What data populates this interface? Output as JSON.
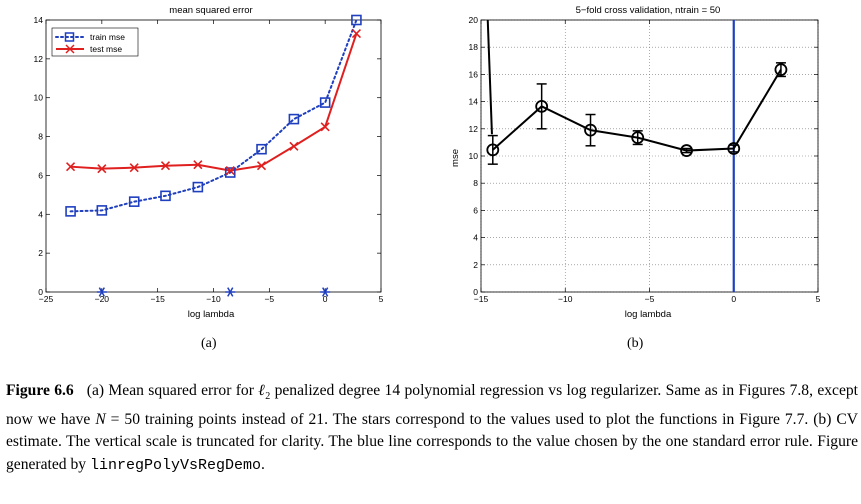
{
  "chart_data": [
    {
      "type": "line",
      "title": "mean squared error",
      "xlabel": "log lambda",
      "ylabel": "",
      "xlim": [
        -25,
        5
      ],
      "ylim": [
        0,
        14
      ],
      "xticks": [
        -25,
        -20,
        -15,
        -10,
        -5,
        0,
        5
      ],
      "yticks": [
        0,
        2,
        4,
        6,
        8,
        10,
        12,
        14
      ],
      "grid": false,
      "legend_position": "top-left",
      "x": [
        -22.8,
        -20.0,
        -17.1,
        -14.3,
        -11.4,
        -8.5,
        -5.7,
        -2.8,
        0.0,
        2.8
      ],
      "series": [
        {
          "name": "train mse",
          "color": "#1f3fbf",
          "style": "dotted",
          "marker": "square",
          "values": [
            4.15,
            4.2,
            4.65,
            4.95,
            5.4,
            6.15,
            7.35,
            8.9,
            9.75,
            14.0
          ]
        },
        {
          "name": "test mse",
          "color": "#e01f1f",
          "style": "solid",
          "marker": "x",
          "values": [
            6.45,
            6.35,
            6.4,
            6.5,
            6.55,
            6.25,
            6.5,
            7.5,
            8.5,
            13.3
          ]
        }
      ],
      "stars": {
        "x": [
          -20.0,
          -8.5,
          0.0
        ],
        "y": 0,
        "color": "#1f3fbf"
      },
      "sublabel": "(a)"
    },
    {
      "type": "line",
      "title": "5−fold cross validation, ntrain = 50",
      "xlabel": "log lambda",
      "ylabel": "mse",
      "xlim": [
        -15,
        5
      ],
      "ylim": [
        0,
        20
      ],
      "xticks": [
        -15,
        -10,
        -5,
        0,
        5
      ],
      "yticks": [
        0,
        2,
        4,
        6,
        8,
        10,
        12,
        14,
        16,
        18,
        20
      ],
      "grid": true,
      "color": "#000000",
      "marker": "circle",
      "x": [
        -14.3,
        -11.4,
        -8.5,
        -5.7,
        -2.8,
        0.0,
        2.8
      ],
      "values": [
        10.45,
        13.65,
        11.9,
        11.35,
        10.4,
        10.55,
        16.35
      ],
      "errors": [
        1.05,
        1.65,
        1.15,
        0.5,
        0.15,
        0.25,
        0.5
      ],
      "entry_line": {
        "x0": -14.6,
        "y0": 20,
        "x1": -14.35,
        "y1": 11.6
      },
      "vline": {
        "x": 0.0,
        "color": "#1f3fbf"
      },
      "sublabel": "(b)"
    }
  ],
  "caption": {
    "label": "Figure 6.6",
    "part1": "(a) Mean squared error for ",
    "l2": "ℓ",
    "l2sub": "2",
    "part2": " penalized degree 14 polynomial regression vs log regularizer. Same as in Figures 7.8, except now we have ",
    "n": "N",
    "part3": " = 50 training points instead of 21. The stars correspond to the values used to plot the functions in Figure 7.7. (b) CV estimate. The vertical scale is truncated for clarity. The blue line corresponds to the value chosen by the one standard error rule. Figure generated by ",
    "code": "linregPolyVsRegDemo",
    "end": "."
  }
}
